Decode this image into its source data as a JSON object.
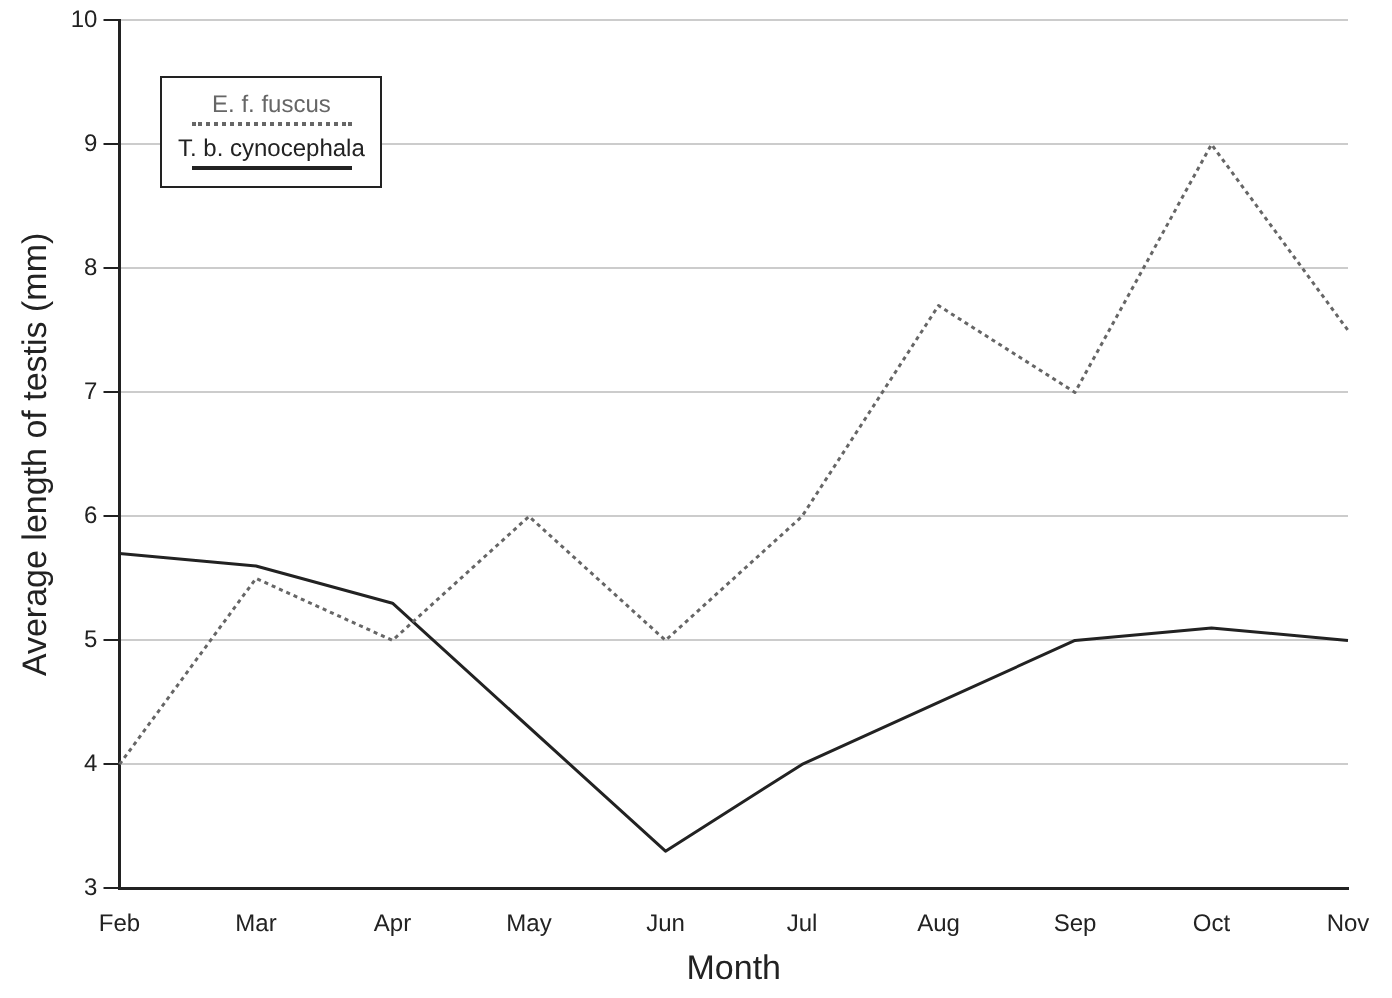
{
  "chart_data": {
    "type": "line",
    "xlabel": "Month",
    "ylabel": "Average length of testis (mm)",
    "categories": [
      "Feb",
      "Mar",
      "Apr",
      "May",
      "Jun",
      "Jul",
      "Aug",
      "Sep",
      "Oct",
      "Nov"
    ],
    "series": [
      {
        "name": "E. f. fuscus",
        "color": "#666666",
        "line_style": "dotted",
        "values": [
          4,
          5.5,
          5,
          6,
          5,
          6,
          7.7,
          7,
          9,
          7.5
        ]
      },
      {
        "name": "T. b. cynocephala",
        "color": "#222222",
        "line_style": "solid",
        "values": [
          5.7,
          5.6,
          5.3,
          null,
          3.3,
          4,
          4.5,
          5,
          5.1,
          5
        ]
      }
    ],
    "ylim": [
      3,
      10
    ],
    "yticks": [
      3,
      4,
      5,
      6,
      7,
      8,
      9,
      10
    ],
    "grid": "y",
    "legend": "top left",
    "marker": "none"
  }
}
